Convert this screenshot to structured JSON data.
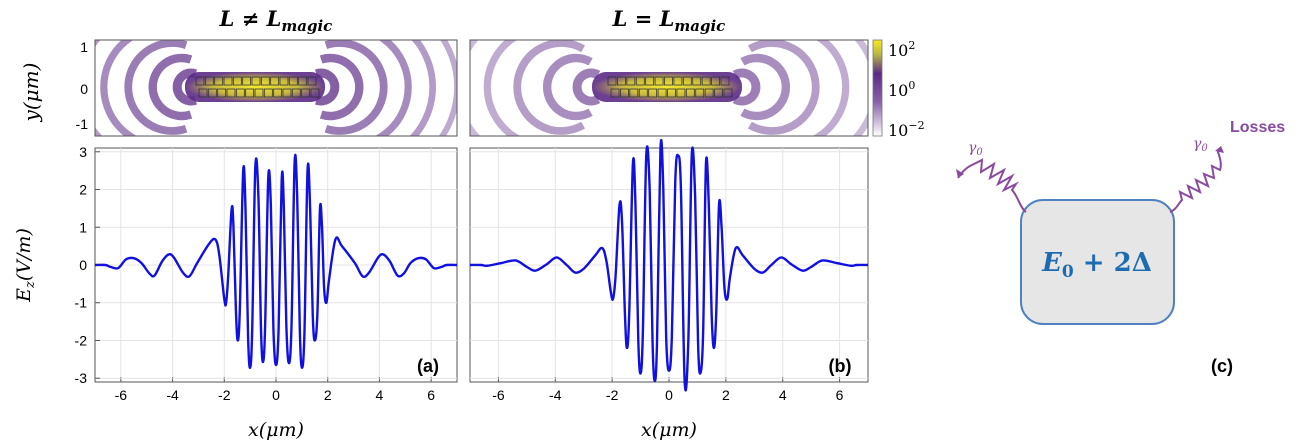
{
  "colors": {
    "field_line": "#1010e0",
    "map_purple": "#5b2a86",
    "map_yellow": "#f0e020",
    "box_fill": "#e6e6e6",
    "box_stroke": "#4f80c0",
    "resonator_text": "#1f6bb0",
    "loss_purple": "#8a4aa0"
  },
  "panels": {
    "a": {
      "title": "L ≠ L",
      "title_sub": "magic",
      "label": "(a)"
    },
    "b": {
      "title": "L = L",
      "title_sub": "magic",
      "label": "(b)"
    }
  },
  "colorbar": {
    "scale": "log",
    "ticks": [
      {
        "base": "10",
        "exp": "2",
        "value": 100
      },
      {
        "base": "10",
        "exp": "0",
        "value": 1
      },
      {
        "base": "10",
        "exp": "−2",
        "value": 0.01
      }
    ]
  },
  "diagram": {
    "energy_main": "E",
    "energy_sub": "0",
    "energy_rest": " + 2Δ",
    "gamma": "γ",
    "gamma_sub": "0",
    "losses": "Losses",
    "label": "(c)"
  },
  "chart_data": [
    {
      "type": "heatmap",
      "panel": "a",
      "description_source": "intensity map",
      "ylabel": "y(μm)",
      "xlim": [
        -7,
        7
      ],
      "ylim": [
        -1.4,
        1.4
      ],
      "yticks": [
        "1",
        "0",
        "-1"
      ],
      "scale": "log",
      "crange": [
        0.01,
        200
      ]
    },
    {
      "type": "heatmap",
      "panel": "b",
      "xlim": [
        -7,
        7
      ],
      "ylim": [
        -1.4,
        1.4
      ],
      "scale": "log",
      "crange": [
        0.01,
        200
      ]
    },
    {
      "type": "line",
      "panel": "a",
      "xlabel": "x(μm)",
      "ylabel": "E_z(V/m)",
      "ylabel_main": "E",
      "ylabel_sub": "z",
      "ylabel_rest": "(V/m)",
      "xlim": [
        -7,
        7
      ],
      "ylim": [
        -3.1,
        3.1
      ],
      "xticks": [
        -6,
        -4,
        -2,
        0,
        2,
        4,
        6
      ],
      "yticks": [
        3,
        2,
        1,
        0,
        -1,
        -2,
        -3
      ],
      "grid": true,
      "series": [
        {
          "points": [
            [
              -7,
              0
            ],
            [
              -6.6,
              0
            ],
            [
              -6.4,
              -0.05
            ],
            [
              -6.1,
              -0.08
            ],
            [
              -5.8,
              0.15
            ],
            [
              -5.5,
              0.18
            ],
            [
              -5.2,
              0.05
            ],
            [
              -4.9,
              -0.22
            ],
            [
              -4.7,
              -0.28
            ],
            [
              -4.4,
              0.1
            ],
            [
              -4.15,
              0.28
            ],
            [
              -3.95,
              0.2
            ],
            [
              -3.6,
              -0.2
            ],
            [
              -3.35,
              -0.3
            ],
            [
              -3.05,
              0.05
            ],
            [
              -2.6,
              0.55
            ],
            [
              -2.35,
              0.68
            ],
            [
              -2.2,
              0.3
            ],
            [
              -2.0,
              -0.9
            ],
            [
              -1.93,
              -1.0
            ],
            [
              -1.85,
              -0.3
            ],
            [
              -1.72,
              1.45
            ],
            [
              -1.65,
              1.1
            ],
            [
              -1.55,
              -1.2
            ],
            [
              -1.48,
              -2.0
            ],
            [
              -1.4,
              -1.2
            ],
            [
              -1.27,
              2.48
            ],
            [
              -1.18,
              1.5
            ],
            [
              -1.08,
              -1.9
            ],
            [
              -1.0,
              -2.72
            ],
            [
              -0.92,
              -1.7
            ],
            [
              -0.8,
              2.6
            ],
            [
              -0.68,
              1.8
            ],
            [
              -0.58,
              -1.7
            ],
            [
              -0.5,
              -2.57
            ],
            [
              -0.42,
              -1.6
            ],
            [
              -0.3,
              2.3
            ],
            [
              -0.2,
              1.6
            ],
            [
              -0.1,
              -1.7
            ],
            [
              0.0,
              -2.65
            ],
            [
              0.1,
              -1.7
            ],
            [
              0.22,
              2.25
            ],
            [
              0.3,
              1.6
            ],
            [
              0.4,
              -1.6
            ],
            [
              0.5,
              -2.6
            ],
            [
              0.6,
              -1.6
            ],
            [
              0.72,
              2.72
            ],
            [
              0.82,
              1.8
            ],
            [
              0.92,
              -1.7
            ],
            [
              1.0,
              -2.72
            ],
            [
              1.1,
              -1.8
            ],
            [
              1.22,
              2.52
            ],
            [
              1.32,
              1.5
            ],
            [
              1.42,
              -1.3
            ],
            [
              1.5,
              -2.0
            ],
            [
              1.6,
              -1.3
            ],
            [
              1.7,
              1.48
            ],
            [
              1.78,
              1.0
            ],
            [
              1.86,
              -0.6
            ],
            [
              1.95,
              -1.0
            ],
            [
              2.05,
              -0.4
            ],
            [
              2.3,
              0.68
            ],
            [
              2.55,
              0.5
            ],
            [
              3.05,
              0.05
            ],
            [
              3.35,
              -0.3
            ],
            [
              3.6,
              -0.2
            ],
            [
              3.95,
              0.2
            ],
            [
              4.15,
              0.28
            ],
            [
              4.4,
              0.1
            ],
            [
              4.7,
              -0.28
            ],
            [
              4.95,
              -0.22
            ],
            [
              5.2,
              0.05
            ],
            [
              5.5,
              0.18
            ],
            [
              5.8,
              0.15
            ],
            [
              6.1,
              -0.08
            ],
            [
              6.4,
              -0.05
            ],
            [
              6.6,
              0
            ],
            [
              7,
              0
            ]
          ]
        }
      ]
    },
    {
      "type": "line",
      "panel": "b",
      "xlabel": "x(μm)",
      "xlim": [
        -7,
        7
      ],
      "ylim": [
        -3.1,
        3.1
      ],
      "xticks": [
        -6,
        -4,
        -2,
        0,
        2,
        4,
        6
      ],
      "grid": true,
      "series": [
        {
          "points": [
            [
              -7,
              0
            ],
            [
              -6.6,
              0
            ],
            [
              -6.4,
              -0.02
            ],
            [
              -5.9,
              0.05
            ],
            [
              -5.4,
              0.12
            ],
            [
              -5.0,
              -0.05
            ],
            [
              -4.7,
              -0.15
            ],
            [
              -4.3,
              0.02
            ],
            [
              -3.95,
              0.2
            ],
            [
              -3.6,
              0.0
            ],
            [
              -3.3,
              -0.2
            ],
            [
              -3.0,
              -0.1
            ],
            [
              -2.6,
              0.25
            ],
            [
              -2.35,
              0.45
            ],
            [
              -2.2,
              0.1
            ],
            [
              -2.05,
              -0.7
            ],
            [
              -1.97,
              -0.9
            ],
            [
              -1.88,
              -0.3
            ],
            [
              -1.74,
              1.6
            ],
            [
              -1.65,
              1.1
            ],
            [
              -1.55,
              -1.3
            ],
            [
              -1.48,
              -2.2
            ],
            [
              -1.4,
              -1.3
            ],
            [
              -1.27,
              2.68
            ],
            [
              -1.18,
              1.6
            ],
            [
              -1.08,
              -2.0
            ],
            [
              -1.0,
              -2.87
            ],
            [
              -0.92,
              -1.8
            ],
            [
              -0.8,
              2.9
            ],
            [
              -0.68,
              2.0
            ],
            [
              -0.58,
              -2.0
            ],
            [
              -0.5,
              -3.07
            ],
            [
              -0.42,
              -2.0
            ],
            [
              -0.3,
              3.08
            ],
            [
              -0.2,
              2.0
            ],
            [
              -0.1,
              -1.9
            ],
            [
              0.0,
              -2.8
            ],
            [
              0.1,
              -1.9
            ],
            [
              0.22,
              2.2
            ],
            [
              0.32,
              2.9
            ],
            [
              0.42,
              2.0
            ],
            [
              0.55,
              -3.07
            ],
            [
              0.68,
              -2.0
            ],
            [
              0.8,
              2.9
            ],
            [
              0.92,
              1.8
            ],
            [
              1.02,
              -2.0
            ],
            [
              1.1,
              -2.87
            ],
            [
              1.2,
              -1.8
            ],
            [
              1.3,
              2.68
            ],
            [
              1.4,
              1.6
            ],
            [
              1.5,
              -1.3
            ],
            [
              1.58,
              -2.2
            ],
            [
              1.66,
              -1.3
            ],
            [
              1.76,
              1.6
            ],
            [
              1.85,
              1.0
            ],
            [
              1.95,
              -0.6
            ],
            [
              2.05,
              -0.9
            ],
            [
              2.15,
              -0.3
            ],
            [
              2.35,
              0.45
            ],
            [
              2.6,
              0.25
            ],
            [
              3.0,
              -0.1
            ],
            [
              3.3,
              -0.2
            ],
            [
              3.6,
              0.0
            ],
            [
              3.95,
              0.2
            ],
            [
              4.3,
              0.02
            ],
            [
              4.7,
              -0.15
            ],
            [
              5.0,
              -0.05
            ],
            [
              5.4,
              0.12
            ],
            [
              5.9,
              0.05
            ],
            [
              6.4,
              -0.02
            ],
            [
              6.6,
              0
            ],
            [
              7,
              0
            ]
          ]
        }
      ]
    }
  ]
}
